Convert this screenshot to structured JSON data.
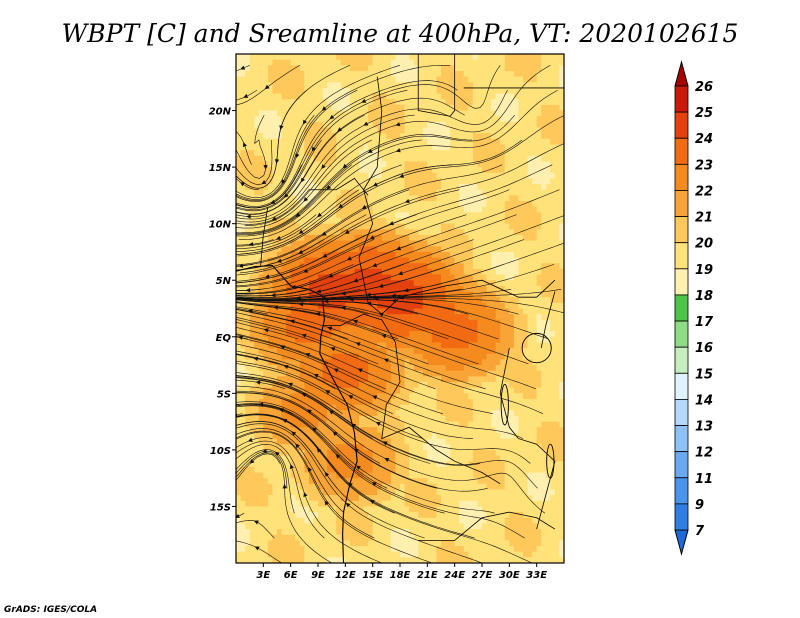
{
  "chart_data": {
    "type": "heatmap",
    "title": "WBPT [C] and Sreamline at 400hPa, VT: 2020102615",
    "variable": "WBPT [C]",
    "level": "400hPa",
    "valid_time": "2020102615",
    "x_range": [
      0,
      36
    ],
    "y_range": [
      -20,
      25
    ],
    "x_ticks": [
      {
        "value": 3,
        "label": "3E"
      },
      {
        "value": 6,
        "label": "6E"
      },
      {
        "value": 9,
        "label": "9E"
      },
      {
        "value": 12,
        "label": "12E"
      },
      {
        "value": 15,
        "label": "15E"
      },
      {
        "value": 18,
        "label": "18E"
      },
      {
        "value": 21,
        "label": "21E"
      },
      {
        "value": 24,
        "label": "24E"
      },
      {
        "value": 27,
        "label": "27E"
      },
      {
        "value": 30,
        "label": "30E"
      },
      {
        "value": 33,
        "label": "33E"
      }
    ],
    "y_ticks": [
      {
        "value": 20,
        "label": "20N"
      },
      {
        "value": 15,
        "label": "15N"
      },
      {
        "value": 10,
        "label": "10N"
      },
      {
        "value": 5,
        "label": "5N"
      },
      {
        "value": 0,
        "label": "EQ"
      },
      {
        "value": -5,
        "label": "5S"
      },
      {
        "value": -10,
        "label": "10S"
      },
      {
        "value": -15,
        "label": "15S"
      }
    ],
    "colorbar": {
      "labels": [
        "7",
        "9",
        "11",
        "12",
        "13",
        "14",
        "15",
        "16",
        "17",
        "18",
        "19",
        "20",
        "21",
        "22",
        "23",
        "24",
        "25",
        "26"
      ],
      "colors": [
        "#1f6ad6",
        "#2f7ee6",
        "#4a94ee",
        "#6aa8f2",
        "#8fc0f6",
        "#b4d8fa",
        "#dff2ff",
        "#c6eebe",
        "#8fdc86",
        "#4cc448",
        "#fff0b0",
        "#ffe27a",
        "#ffc85a",
        "#f9a436",
        "#f58a1e",
        "#f26a12",
        "#e3410e",
        "#c81a08",
        "#a60000"
      ]
    },
    "field_peaks": [
      {
        "lon": 10.5,
        "lat": 4.0,
        "value": 24
      },
      {
        "lon": 14.5,
        "lat": 4.5,
        "value": 24
      },
      {
        "lon": 18.0,
        "lat": 3.5,
        "value": 24
      },
      {
        "lon": 21.5,
        "lat": 2.0,
        "value": 23
      },
      {
        "lon": 24.0,
        "lat": 0.5,
        "value": 23
      },
      {
        "lon": 12.0,
        "lat": -3.0,
        "value": 23
      },
      {
        "lon": 8.0,
        "lat": 1.0,
        "value": 23
      },
      {
        "lon": 7.5,
        "lat": -6.5,
        "value": 22
      },
      {
        "lon": 12.5,
        "lat": -11.0,
        "value": 22
      }
    ],
    "field_base": 19.6,
    "streamline_field": {
      "background_flow": "easterly",
      "features": [
        {
          "type": "confluence_line",
          "lat": 3.5,
          "lon_range": [
            6,
            36
          ]
        },
        {
          "type": "anticyclone",
          "lon": 3.0,
          "lat": 14.0
        },
        {
          "type": "anticyclone",
          "lon": 4.0,
          "lat": -11.0
        },
        {
          "type": "anticyclone",
          "lon": 27.0,
          "lat": 20.0
        }
      ]
    }
  },
  "footer": {
    "credit": "GrADS: IGES/COLA"
  }
}
